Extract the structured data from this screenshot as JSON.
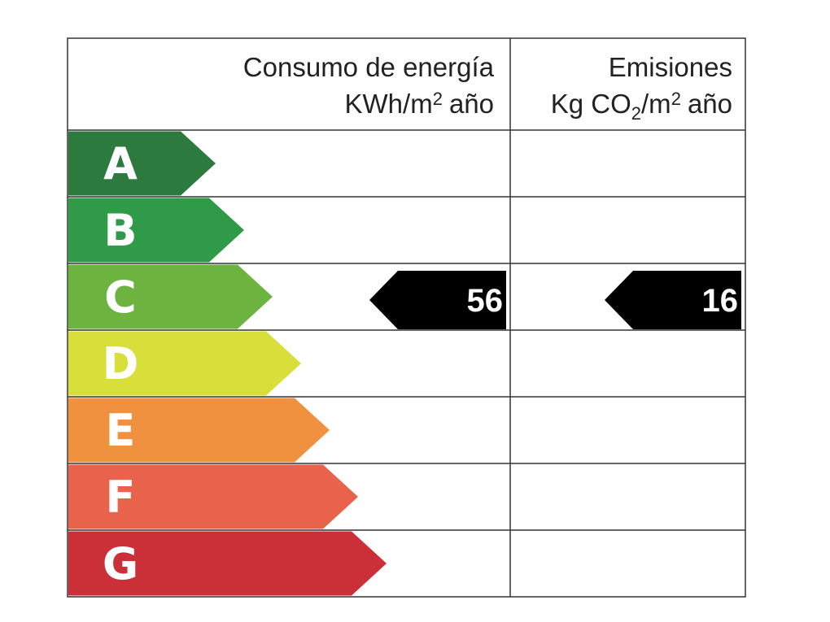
{
  "header": {
    "energy": {
      "line1": "Consumo de energía",
      "unit": [
        "KWh/m",
        "2",
        "año"
      ]
    },
    "emissions": {
      "line1": "Emisiones",
      "unit": [
        "Kg CO",
        "2",
        "/m",
        "2",
        "año"
      ]
    }
  },
  "rows": [
    {
      "letter": "A",
      "color": "#2d7a3e"
    },
    {
      "letter": "B",
      "color": "#2f9a48"
    },
    {
      "letter": "C",
      "color": "#6db33f",
      "energy": 56,
      "emissions": 16
    },
    {
      "letter": "D",
      "color": "#d8df3b"
    },
    {
      "letter": "E",
      "color": "#f0913f"
    },
    {
      "letter": "F",
      "color": "#e9624b"
    },
    {
      "letter": "G",
      "color": "#cb2f37"
    }
  ]
}
